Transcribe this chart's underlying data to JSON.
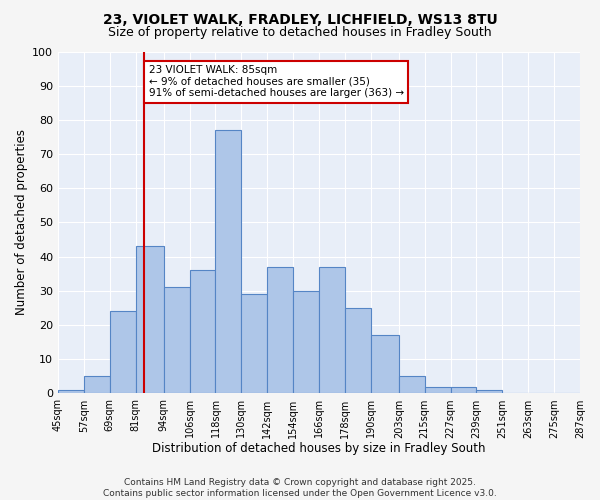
{
  "title_line1": "23, VIOLET WALK, FRADLEY, LICHFIELD, WS13 8TU",
  "title_line2": "Size of property relative to detached houses in Fradley South",
  "xlabel": "Distribution of detached houses by size in Fradley South",
  "ylabel": "Number of detached properties",
  "bin_labels": [
    "45sqm",
    "57sqm",
    "69sqm",
    "81sqm",
    "94sqm",
    "106sqm",
    "118sqm",
    "130sqm",
    "142sqm",
    "154sqm",
    "166sqm",
    "178sqm",
    "190sqm",
    "203sqm",
    "215sqm",
    "227sqm",
    "239sqm",
    "251sqm",
    "263sqm",
    "275sqm",
    "287sqm"
  ],
  "counts": [
    1,
    5,
    24,
    43,
    31,
    36,
    77,
    29,
    37,
    30,
    37,
    25,
    17,
    5,
    2,
    2,
    1,
    0,
    0,
    0
  ],
  "bin_edges": [
    45,
    57,
    69,
    81,
    94,
    106,
    118,
    130,
    142,
    154,
    166,
    178,
    190,
    203,
    215,
    227,
    239,
    251,
    263,
    275,
    287
  ],
  "bar_color": "#aec6e8",
  "bar_edge_color": "#5585c5",
  "vline_x": 85,
  "vline_color": "#cc0000",
  "annotation_text": "23 VIOLET WALK: 85sqm\n← 9% of detached houses are smaller (35)\n91% of semi-detached houses are larger (363) →",
  "annotation_box_color": "#ffffff",
  "annotation_box_edge": "#cc0000",
  "ylim": [
    0,
    100
  ],
  "yticks": [
    0,
    10,
    20,
    30,
    40,
    50,
    60,
    70,
    80,
    90,
    100
  ],
  "footer_line1": "Contains HM Land Registry data © Crown copyright and database right 2025.",
  "footer_line2": "Contains public sector information licensed under the Open Government Licence v3.0.",
  "bg_color": "#e8eef8",
  "grid_color": "#ffffff",
  "fig_bg_color": "#f5f5f5"
}
